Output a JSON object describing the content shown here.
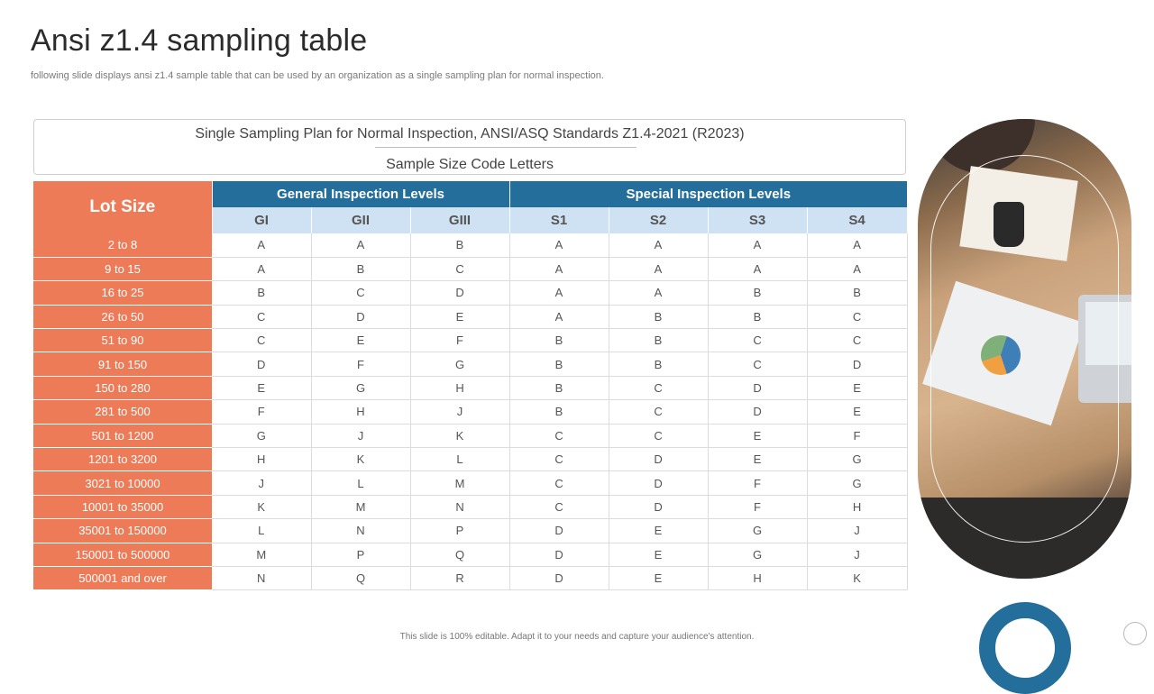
{
  "slide": {
    "title": "Ansi z1.4 sampling table",
    "subtitle": "following slide displays ansi z1.4 sample table that can be used by an organization as a single sampling plan for normal inspection.",
    "footer": "This slide is 100% editable.  Adapt it to your needs and capture your audience's attention."
  },
  "table_header": {
    "line1": "Single Sampling Plan for Normal Inspection, ANSI/ASQ Standards Z1.4-2021 (R2023)",
    "line2": "Sample Size Code Letters"
  },
  "table": {
    "lot_size_label": "Lot Size",
    "general_label": "General Inspection Levels",
    "special_label": "Special Inspection Levels",
    "columns": [
      "GI",
      "GII",
      "GIII",
      "S1",
      "S2",
      "S3",
      "S4"
    ],
    "rows": [
      {
        "lot": "2 to 8",
        "codes": [
          "A",
          "A",
          "B",
          "A",
          "A",
          "A",
          "A"
        ]
      },
      {
        "lot": "9 to 15",
        "codes": [
          "A",
          "B",
          "C",
          "A",
          "A",
          "A",
          "A"
        ]
      },
      {
        "lot": "16 to 25",
        "codes": [
          "B",
          "C",
          "D",
          "A",
          "A",
          "B",
          "B"
        ]
      },
      {
        "lot": "26 to 50",
        "codes": [
          "C",
          "D",
          "E",
          "A",
          "B",
          "B",
          "C"
        ]
      },
      {
        "lot": "51 to 90",
        "codes": [
          "C",
          "E",
          "F",
          "B",
          "B",
          "C",
          "C"
        ]
      },
      {
        "lot": "91 to 150",
        "codes": [
          "D",
          "F",
          "G",
          "B",
          "B",
          "C",
          "D"
        ]
      },
      {
        "lot": "150 to 280",
        "codes": [
          "E",
          "G",
          "H",
          "B",
          "C",
          "D",
          "E"
        ]
      },
      {
        "lot": "281 to 500",
        "codes": [
          "F",
          "H",
          "J",
          "B",
          "C",
          "D",
          "E"
        ]
      },
      {
        "lot": "501 to 1200",
        "codes": [
          "G",
          "J",
          "K",
          "C",
          "C",
          "E",
          "F"
        ]
      },
      {
        "lot": "1201 to 3200",
        "codes": [
          "H",
          "K",
          "L",
          "C",
          "D",
          "E",
          "G"
        ]
      },
      {
        "lot": "3021 to 10000",
        "codes": [
          "J",
          "L",
          "M",
          "C",
          "D",
          "F",
          "G"
        ]
      },
      {
        "lot": "10001 to 35000",
        "codes": [
          "K",
          "M",
          "N",
          "C",
          "D",
          "F",
          "H"
        ]
      },
      {
        "lot": "35001 to 150000",
        "codes": [
          "L",
          "N",
          "P",
          "D",
          "E",
          "G",
          "J"
        ]
      },
      {
        "lot": "150001 to 500000",
        "codes": [
          "M",
          "P",
          "Q",
          "D",
          "E",
          "G",
          "J"
        ]
      },
      {
        "lot": "500001 and over",
        "codes": [
          "N",
          "Q",
          "R",
          "D",
          "E",
          "H",
          "K"
        ]
      }
    ]
  },
  "colors": {
    "lot_orange": "#ee7b58",
    "header_blue": "#236e9a",
    "subheader_light_blue": "#cfe2f3"
  }
}
